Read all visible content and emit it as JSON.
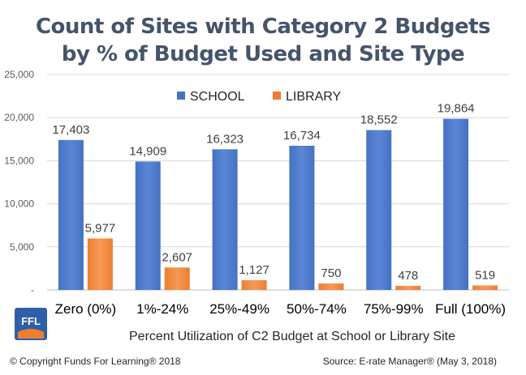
{
  "title_line1": "Count of Sites with Category 2 Budgets",
  "title_line2": "by % of Budget Used and Site Type",
  "chart_data": {
    "type": "bar",
    "title": "Count of Sites with Category 2 Budgets by % of Budget Used and Site Type",
    "categories": [
      "Zero (0%)",
      "1%-24%",
      "25%-49%",
      "50%-74%",
      "75%-99%",
      "Full (100%)"
    ],
    "series": [
      {
        "name": "SCHOOL",
        "color": "#4472c4",
        "values": [
          17403,
          14909,
          16323,
          16734,
          18552,
          19864
        ]
      },
      {
        "name": "LIBRARY",
        "color": "#ed7d31",
        "values": [
          5977,
          2607,
          1127,
          750,
          478,
          519
        ]
      }
    ],
    "value_labels": {
      "SCHOOL": [
        "17,403",
        "14,909",
        "16,323",
        "16,734",
        "18,552",
        "19,864"
      ],
      "LIBRARY": [
        "5,977",
        "2,607",
        "1,127",
        "750",
        "478",
        "519"
      ]
    },
    "xlabel": "Percent Utilization of C2 Budget at School or Library Site",
    "ylabel": "",
    "ylim": [
      0,
      25000
    ],
    "yticks": [
      0,
      5000,
      10000,
      15000,
      20000,
      25000
    ],
    "ytick_labels": [
      "-",
      "5,000",
      "10,000",
      "15,000",
      "20,000",
      "25,000"
    ],
    "grid": true,
    "legend_position": "top-center"
  },
  "logo_text": "FFL",
  "footer_left": "© Copyright Funds For Learning® 2018",
  "footer_right": "Source: E-rate Manager® (May 3, 2018)"
}
